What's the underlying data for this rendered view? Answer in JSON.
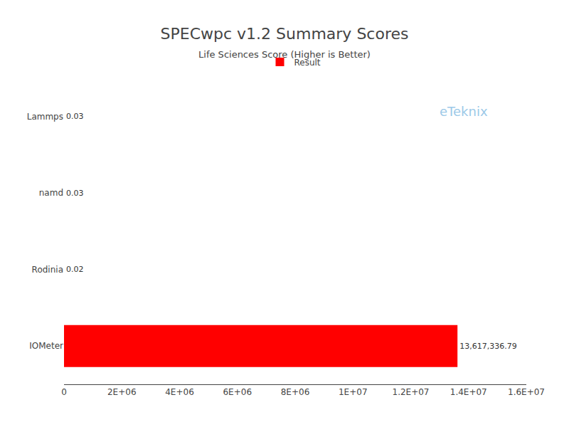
{
  "chart_data": {
    "type": "bar",
    "orientation": "horizontal",
    "title": "SPECwpc v1.2 Summary Scores",
    "subtitle": "Life Sciences Score (Higher is Better)",
    "categories": [
      "IOMeter",
      "Rodinia",
      "namd",
      "Lammps"
    ],
    "series": [
      {
        "name": "Result",
        "color": "#ff0000",
        "values": [
          13617336.79,
          0.02,
          0.03,
          0.03
        ],
        "value_labels": [
          "13,617,336.79",
          "0.02",
          "0.03",
          "0.03"
        ]
      }
    ],
    "data_labels": true,
    "xlim": [
      0,
      16000000
    ],
    "xticks": [
      0,
      {
        "value": 2000000,
        "label": "2E+06"
      },
      {
        "value": 4000000,
        "label": "4E+06"
      },
      {
        "value": 6000000,
        "label": "6E+06"
      },
      {
        "value": 8000000,
        "label": "8E+06"
      },
      {
        "value": 10000000,
        "label": "1E+07"
      },
      {
        "value": 12000000,
        "label": "1.2E+07"
      },
      {
        "value": 14000000,
        "label": "1.4E+07"
      },
      {
        "value": 16000000,
        "label": "1.6E+07"
      }
    ],
    "grid": false,
    "legend": "top",
    "annotations": [
      "eTeknix"
    ]
  }
}
